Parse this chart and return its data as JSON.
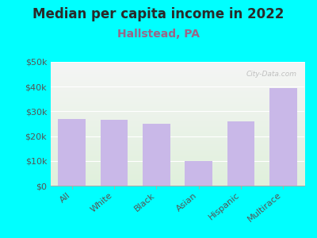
{
  "title": "Median per capita income in 2022",
  "subtitle": "Hallstead, PA",
  "categories": [
    "All",
    "White",
    "Black",
    "Asian",
    "Hispanic",
    "Multirace"
  ],
  "values": [
    27000,
    26500,
    25000,
    10000,
    26000,
    39500
  ],
  "bar_color": "#c9b8e8",
  "background_color": "#00FFFF",
  "chart_bg_top": "#f5f5f5",
  "chart_bg_bottom": "#e0f0dc",
  "title_color": "#2a2a2a",
  "subtitle_color": "#996688",
  "axis_label_color": "#555555",
  "ylim": [
    0,
    50000
  ],
  "yticks": [
    0,
    10000,
    20000,
    30000,
    40000,
    50000
  ],
  "ytick_labels": [
    "$0",
    "$10k",
    "$20k",
    "$30k",
    "$40k",
    "$50k"
  ],
  "watermark": "City-Data.com",
  "title_fontsize": 12,
  "subtitle_fontsize": 10,
  "tick_fontsize": 8
}
